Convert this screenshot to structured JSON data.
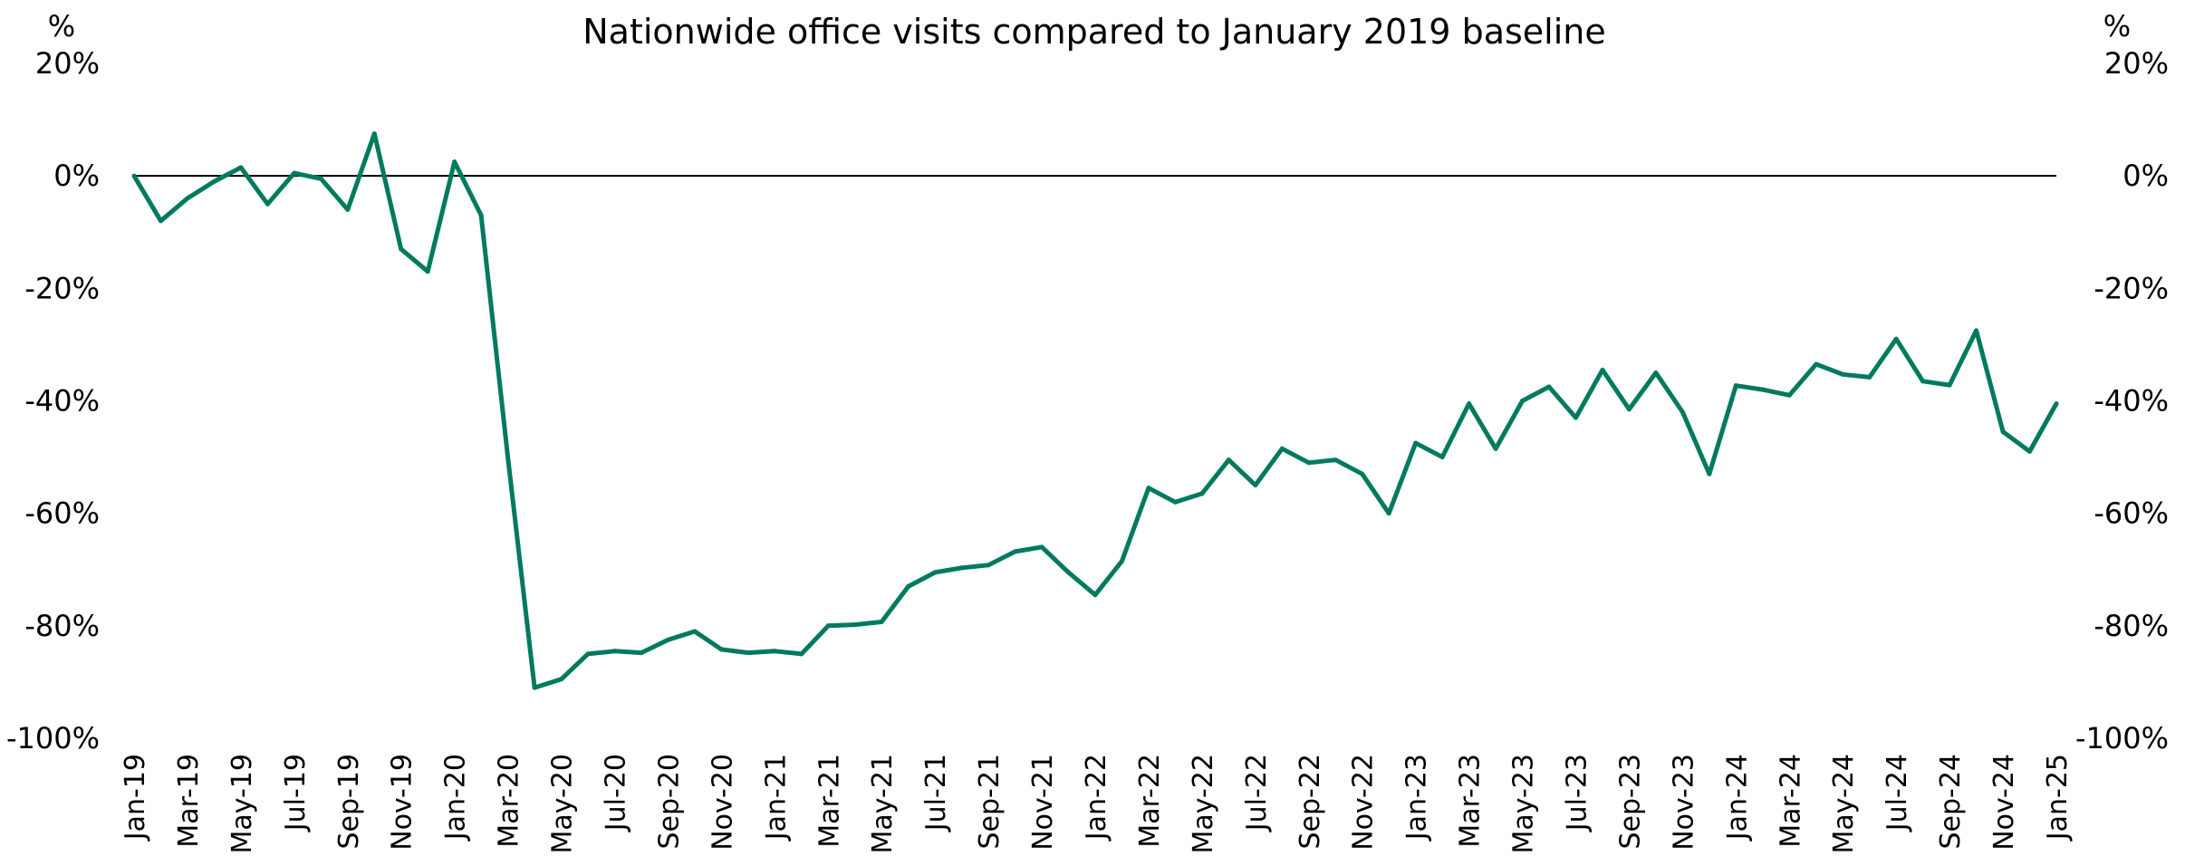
{
  "chart_data": {
    "type": "line",
    "title": "Nationwide office visits compared to January 2019 baseline",
    "left_axis_unit": "%",
    "right_axis_unit": "%",
    "ylim": [
      -100,
      20
    ],
    "y_ticks": [
      "20%",
      "0%",
      "-20%",
      "-40%",
      "-60%",
      "-80%",
      "-100%"
    ],
    "y_tick_values": [
      20,
      0,
      -20,
      -40,
      -60,
      -80,
      -100
    ],
    "x_tick_labels": [
      "Jan-19",
      "Mar-19",
      "May-19",
      "Jul-19",
      "Sep-19",
      "Nov-19",
      "Jan-20",
      "Mar-20",
      "May-20",
      "Jul-20",
      "Sep-20",
      "Nov-20",
      "Jan-21",
      "Mar-21",
      "May-21",
      "Jul-21",
      "Sep-21",
      "Nov-21",
      "Jan-22",
      "Mar-22",
      "May-22",
      "Jul-22",
      "Sep-22",
      "Nov-22",
      "Jan-23",
      "Mar-23",
      "May-23",
      "Jul-23",
      "Sep-23",
      "Nov-23",
      "Jan-24",
      "Mar-24",
      "May-24",
      "Jul-24",
      "Sep-24",
      "Nov-24",
      "Jan-25"
    ],
    "series_color": "#007A5E",
    "zero_line": true,
    "grid": false,
    "legend": "none",
    "series": [
      {
        "values": [
          0,
          -8,
          -4,
          -1,
          1.5,
          -5,
          0.5,
          -0.5,
          -6,
          7.5,
          -13,
          -17,
          2.5,
          -7,
          -50,
          -91,
          -89.5,
          -85,
          -84.5,
          -84.8,
          -82.5,
          -81,
          -84.2,
          -84.8,
          -84.5,
          -85,
          -80,
          -79.8,
          -79.3,
          -73,
          -70.5,
          -69.7,
          -69.2,
          -66.8,
          -66,
          -70.5,
          -74.5,
          -68.5,
          -55.5,
          -58,
          -56.5,
          -50.5,
          -55,
          -48.5,
          -51,
          -50.5,
          -53,
          -60,
          -47.5,
          -50,
          -40.5,
          -48.5,
          -40,
          -37.5,
          -43,
          -34.5,
          -41.5,
          -35,
          -42,
          -53,
          -37.3,
          -38,
          -39,
          -33.5,
          -35.3,
          -35.8,
          -29,
          -36.5,
          -37.2,
          -27.5,
          -45.5,
          -49,
          -40.5
        ]
      }
    ]
  }
}
